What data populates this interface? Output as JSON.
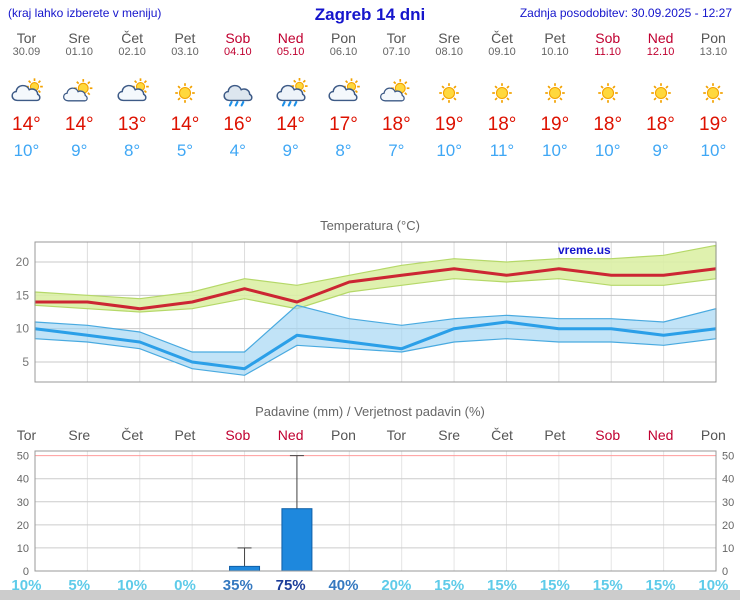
{
  "colors": {
    "accent_blue": "#1515cc",
    "weekend_red": "#c00030",
    "tmax_red": "#dd1100",
    "tmin_blue": "#3fa7f5",
    "prob_low": "#5ecbe9",
    "prob_mid": "#3579c0",
    "prob_high": "#1c3d99",
    "bar_blue": "#1e88dd"
  },
  "header": {
    "menu_note": "(kraj lahko izberete v meniju)",
    "title": "Zagreb 14 dni",
    "last_update": "Zadnja posodobitev: 30.09.2025 - 12:27"
  },
  "days": [
    {
      "name": "Tor",
      "date": "30.09",
      "weekend": false,
      "icon": "partly-cloudy",
      "tmax": "14°",
      "tmin": "10°",
      "prob": "10%",
      "prob_level": "low"
    },
    {
      "name": "Sre",
      "date": "01.10",
      "weekend": false,
      "icon": "partly-sunny",
      "tmax": "14°",
      "tmin": "9°",
      "prob": "5%",
      "prob_level": "low"
    },
    {
      "name": "Čet",
      "date": "02.10",
      "weekend": false,
      "icon": "partly-cloudy",
      "tmax": "13°",
      "tmin": "8°",
      "prob": "10%",
      "prob_level": "low"
    },
    {
      "name": "Pet",
      "date": "03.10",
      "weekend": false,
      "icon": "sunny",
      "tmax": "14°",
      "tmin": "5°",
      "prob": "0%",
      "prob_level": "low"
    },
    {
      "name": "Sob",
      "date": "04.10",
      "weekend": true,
      "icon": "rain",
      "tmax": "16°",
      "tmin": "4°",
      "prob": "35%",
      "prob_level": "mid"
    },
    {
      "name": "Ned",
      "date": "05.10",
      "weekend": true,
      "icon": "sun-showers",
      "tmax": "14°",
      "tmin": "9°",
      "prob": "75%",
      "prob_level": "high"
    },
    {
      "name": "Pon",
      "date": "06.10",
      "weekend": false,
      "icon": "partly-cloudy",
      "tmax": "17°",
      "tmin": "8°",
      "prob": "40%",
      "prob_level": "mid"
    },
    {
      "name": "Tor",
      "date": "07.10",
      "weekend": false,
      "icon": "partly-sunny",
      "tmax": "18°",
      "tmin": "7°",
      "prob": "20%",
      "prob_level": "low"
    },
    {
      "name": "Sre",
      "date": "08.10",
      "weekend": false,
      "icon": "sunny",
      "tmax": "19°",
      "tmin": "10°",
      "prob": "15%",
      "prob_level": "low"
    },
    {
      "name": "Čet",
      "date": "09.10",
      "weekend": false,
      "icon": "sunny",
      "tmax": "18°",
      "tmin": "11°",
      "prob": "15%",
      "prob_level": "low"
    },
    {
      "name": "Pet",
      "date": "10.10",
      "weekend": false,
      "icon": "sunny",
      "tmax": "19°",
      "tmin": "10°",
      "prob": "15%",
      "prob_level": "low"
    },
    {
      "name": "Sob",
      "date": "11.10",
      "weekend": true,
      "icon": "sunny",
      "tmax": "18°",
      "tmin": "10°",
      "prob": "15%",
      "prob_level": "low"
    },
    {
      "name": "Ned",
      "date": "12.10",
      "weekend": true,
      "icon": "sunny",
      "tmax": "18°",
      "tmin": "9°",
      "prob": "15%",
      "prob_level": "low"
    },
    {
      "name": "Pon",
      "date": "13.10",
      "weekend": false,
      "icon": "sunny",
      "tmax": "19°",
      "tmin": "10°",
      "prob": "10%",
      "prob_level": "low"
    }
  ],
  "chart_data": [
    {
      "type": "line",
      "title": "Temperatura (°C)",
      "watermark": "vreme.us",
      "x_labels": [
        "Tor",
        "Sre",
        "Čet",
        "Pet",
        "Sob",
        "Ned",
        "Pon",
        "Tor",
        "Sre",
        "Čet",
        "Pet",
        "Sob",
        "Ned",
        "Pon"
      ],
      "ylim": [
        2,
        23
      ],
      "yticks": [
        5,
        10,
        15,
        20
      ],
      "legend_position": "none",
      "grid": true,
      "series": [
        {
          "name": "max-temp",
          "color": "#cc2633",
          "values": [
            14,
            14,
            13,
            14,
            16,
            14,
            17,
            18,
            19,
            18,
            19,
            18,
            18,
            19
          ]
        },
        {
          "name": "min-temp",
          "color": "#2b9fe8",
          "values": [
            10,
            9,
            8,
            5,
            4,
            9,
            8,
            7,
            10,
            11,
            10,
            10,
            9,
            10
          ]
        }
      ],
      "bands": [
        {
          "name": "max-temp-range",
          "fill": "#dcefa5",
          "edge": "#b5d868",
          "upper": [
            15.5,
            15,
            14.5,
            15.5,
            17.5,
            16.5,
            18,
            19.5,
            20.5,
            20,
            20.5,
            20.5,
            21,
            22.5
          ],
          "lower": [
            13.5,
            13,
            12.5,
            13,
            14.5,
            13,
            15.5,
            16.5,
            17.5,
            17,
            17.5,
            16.5,
            16.5,
            17.5
          ]
        },
        {
          "name": "min-temp-range",
          "fill": "#a0d4f2",
          "edge": "#49aae0",
          "upper": [
            11,
            10.5,
            9.5,
            6.5,
            6.5,
            13.5,
            11.5,
            10.5,
            11.5,
            12,
            11.5,
            11.5,
            11,
            13
          ],
          "lower": [
            8.5,
            8,
            7,
            4,
            3,
            7.5,
            7,
            6.5,
            8,
            8.5,
            8,
            8,
            7.5,
            8.5
          ]
        }
      ]
    },
    {
      "type": "bar",
      "title": "Padavine (mm) / Verjetnost padavin (%)",
      "x_labels": [
        "Tor",
        "Sre",
        "Čet",
        "Pet",
        "Sob",
        "Ned",
        "Pon",
        "Tor",
        "Sre",
        "Čet",
        "Pet",
        "Sob",
        "Ned",
        "Pon"
      ],
      "weekend_flags": [
        false,
        false,
        false,
        false,
        true,
        true,
        false,
        false,
        false,
        false,
        false,
        true,
        true,
        false
      ],
      "ylim": [
        0,
        52
      ],
      "yticks": [
        0,
        10,
        20,
        30,
        40,
        50
      ],
      "grid": true,
      "precip_mm": [
        0,
        0,
        0,
        0,
        2,
        27,
        0,
        0,
        0,
        0,
        0,
        0,
        0,
        0
      ],
      "range_max_mm": [
        0,
        0,
        0,
        0,
        10,
        50,
        0,
        0,
        0,
        0,
        0,
        0,
        0,
        0
      ],
      "probabilities": [
        "10%",
        "5%",
        "10%",
        "0%",
        "35%",
        "75%",
        "40%",
        "20%",
        "15%",
        "15%",
        "15%",
        "15%",
        "15%",
        "10%"
      ]
    }
  ]
}
